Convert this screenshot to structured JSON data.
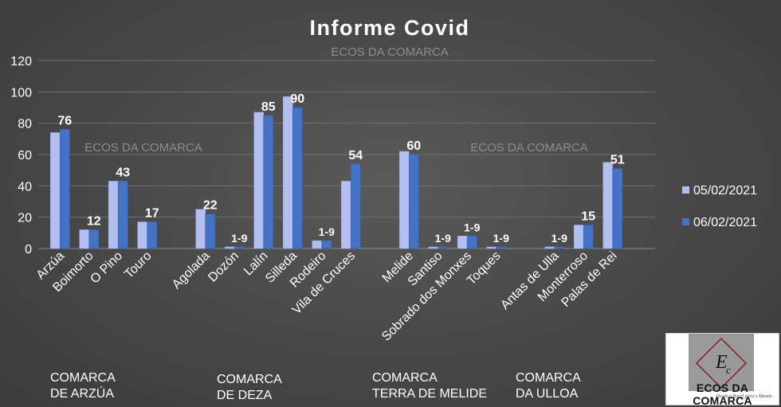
{
  "chart_data": {
    "type": "bar",
    "title": "Informe Covid",
    "watermarks": [
      "ECOS DA COMARCA",
      "ECOS DA COMARCA",
      "ECOS DA COMARCA"
    ],
    "categories": [
      "Arzúa",
      "Boimorto",
      "O Pino",
      "Touro",
      "Agolada",
      "Dozón",
      "Lalín",
      "Silleda",
      "Rodeiro",
      "Vila de Cruces",
      "Melide",
      "Santiso",
      "Sobrado dos Monxes",
      "Toques",
      "Antas de Ulla",
      "Monterroso",
      "Palas de Rei"
    ],
    "category_groups": [
      {
        "label_lines": [
          "COMARCA",
          "DE ARZÚA"
        ],
        "categories": [
          "Arzúa",
          "Boimorto",
          "O Pino",
          "Touro"
        ]
      },
      {
        "label_lines": [
          "COMARCA",
          "DE DEZA"
        ],
        "categories": [
          "Agolada",
          "Dozón",
          "Lalín",
          "Silleda",
          "Rodeiro",
          "Vila de Cruces"
        ]
      },
      {
        "label_lines": [
          "COMARCA",
          "TERRA DE MELIDE"
        ],
        "categories": [
          "Melide",
          "Santiso",
          "Sobrado dos Monxes",
          "Toques"
        ]
      },
      {
        "label_lines": [
          "COMARCA",
          "DA ULLOA"
        ],
        "categories": [
          "Antas de Ulla",
          "Monterroso",
          "Palas de Rei"
        ]
      }
    ],
    "series": [
      {
        "name": "05/02/2021",
        "values": [
          74,
          12,
          43,
          17,
          25,
          1,
          87,
          97,
          5,
          43,
          62,
          1,
          8,
          1,
          1,
          15,
          55
        ]
      },
      {
        "name": "06/02/2021",
        "values": [
          76,
          12,
          43,
          17,
          22,
          1,
          85,
          90,
          5,
          54,
          60,
          1,
          8,
          1,
          1,
          15,
          51
        ],
        "data_labels": [
          "76",
          "12",
          "43",
          "17",
          "22",
          "1-9",
          "85",
          "90",
          "1-9",
          "54",
          "60",
          "1-9",
          "1-9",
          "1-9",
          "1-9",
          "15",
          "51"
        ]
      }
    ],
    "ylim": [
      0,
      120
    ],
    "yticks": [
      0,
      20,
      40,
      60,
      80,
      100,
      120
    ],
    "grid": true,
    "legend_position": "right",
    "colors": {
      "series1": "#b4bff0",
      "series2": "#4472c4",
      "text": "#ffffff",
      "grid": "#6f6f6f",
      "watermark": "#8c8c8c"
    }
  },
  "logo": {
    "name": "ECOS DA COMARCA",
    "tagline": "Desde o Rural para o Mundo"
  }
}
